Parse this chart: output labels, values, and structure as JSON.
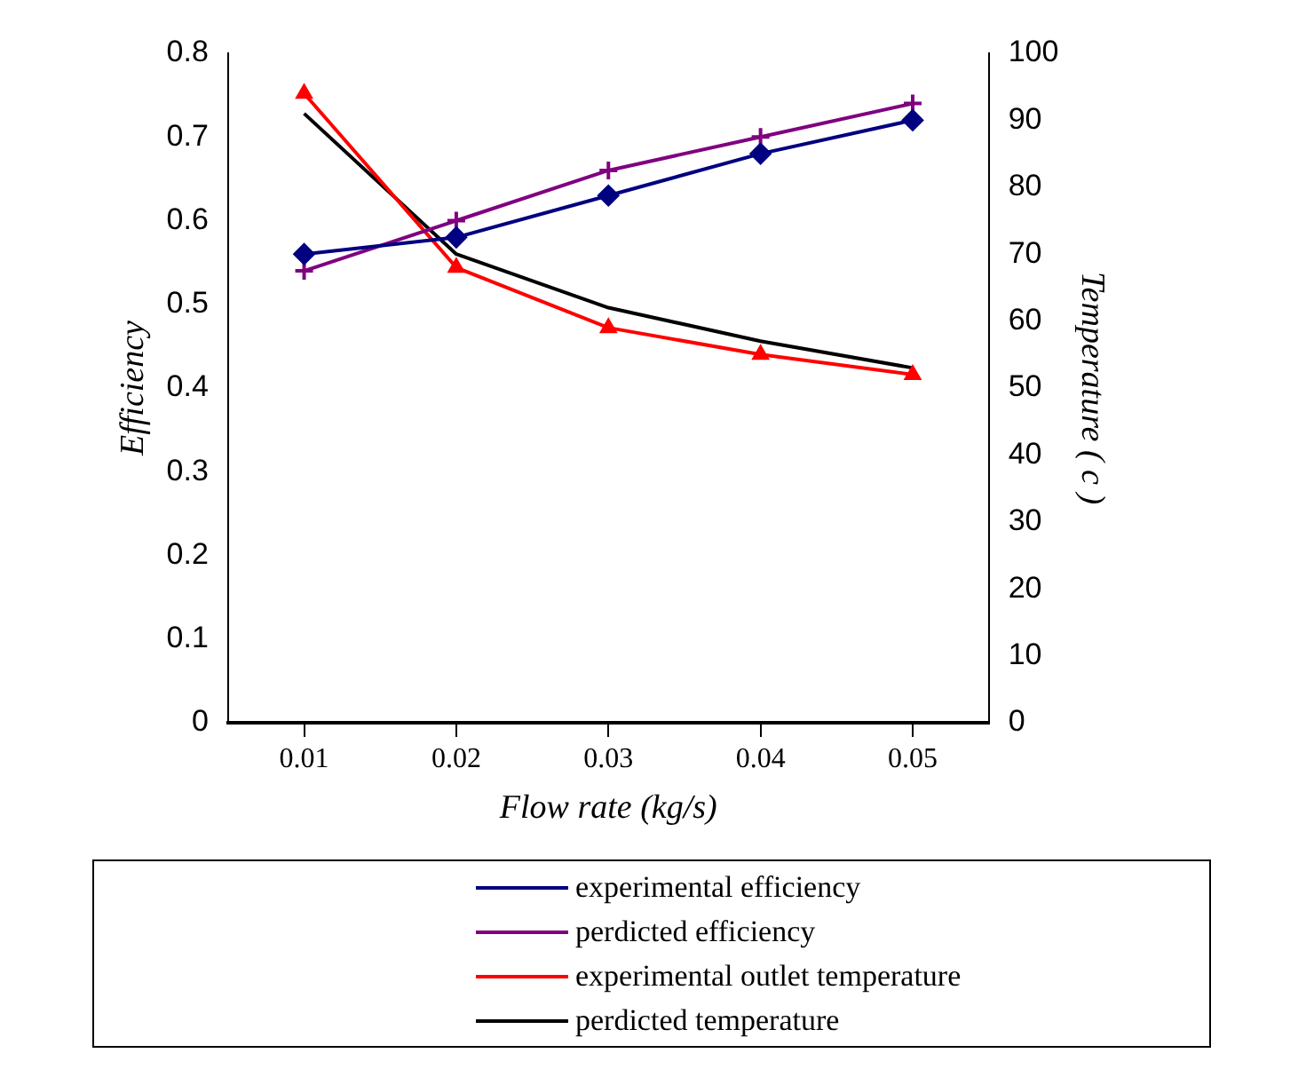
{
  "chart_data": {
    "type": "line",
    "xlabel": "Flow rate (kg/s)",
    "ylabel": "Efficiency",
    "y2label": "Temperature ( c )",
    "categories": [
      "0.01",
      "0.02",
      "0.03",
      "0.04",
      "0.05"
    ],
    "ylim": [
      0,
      0.8
    ],
    "yticks": [
      0,
      0.1,
      0.2,
      0.3,
      0.4,
      0.5,
      0.6,
      0.7,
      0.8
    ],
    "y2lim": [
      0,
      100
    ],
    "y2ticks": [
      0,
      10,
      20,
      30,
      40,
      50,
      60,
      70,
      80,
      90,
      100
    ],
    "grid": false,
    "legend": "bottom",
    "line_style": "solid",
    "series": [
      {
        "name": "experimental efficiency",
        "color": "#000080",
        "marker": "diamond",
        "values": [
          0.56,
          0.58,
          0.63,
          0.68,
          0.72
        ]
      },
      {
        "name": "perdicted efficiency",
        "color": "#800080",
        "marker": "cross",
        "values": [
          0.54,
          0.6,
          0.66,
          0.7,
          0.74
        ]
      },
      {
        "name": "experimental outlet temperature",
        "color": "#ff0000",
        "marker": "triangle",
        "axis": "y2",
        "values": [
          94,
          68,
          59,
          55,
          52
        ]
      },
      {
        "name": "perdicted temperature",
        "color": "#000000",
        "marker": "none",
        "axis": "y2",
        "values": [
          91,
          70,
          62,
          57,
          53
        ]
      }
    ]
  }
}
